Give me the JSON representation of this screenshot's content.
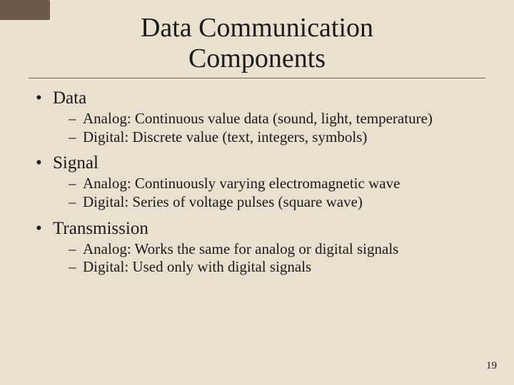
{
  "slide": {
    "title_line1": "Data Communication",
    "title_line2": "Components",
    "background_color": "#e9e0cf",
    "accent_color": "#6b5a4a",
    "rule_color": "#6b6556",
    "text_color": "#1a1a1a",
    "title_fontsize": 38,
    "l1_fontsize": 25,
    "l2_fontsize": 21,
    "page_number": "19",
    "sections": [
      {
        "heading": "Data",
        "items": [
          "Analog: Continuous value data (sound, light, temperature)",
          "Digital: Discrete value (text, integers, symbols)"
        ]
      },
      {
        "heading": "Signal",
        "items": [
          "Analog: Continuously varying electromagnetic wave",
          "Digital: Series of voltage pulses (square wave)"
        ]
      },
      {
        "heading": "Transmission",
        "items": [
          "Analog: Works the same for analog or digital signals",
          "Digital: Used only with digital signals"
        ]
      }
    ]
  }
}
